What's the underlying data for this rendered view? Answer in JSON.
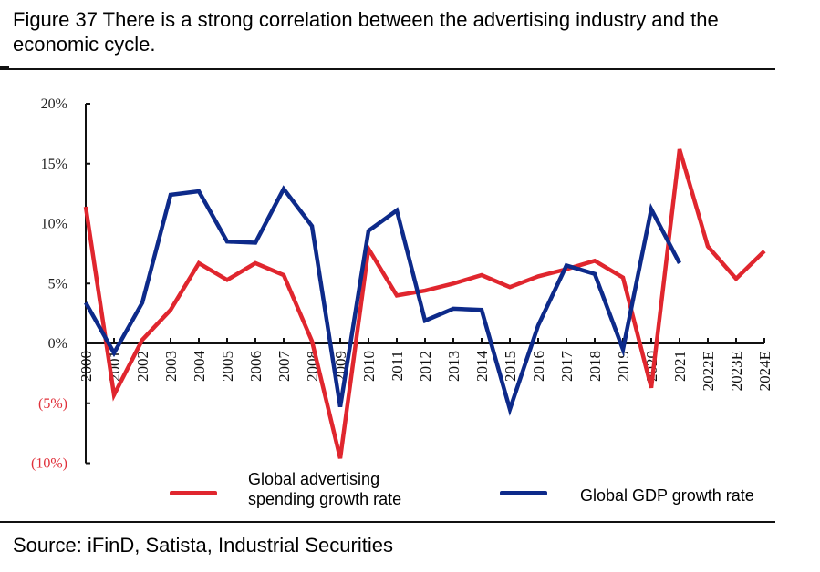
{
  "figure": {
    "title": "Figure 37 There is a strong correlation between the advertising industry and the economic cycle.",
    "source": "Source: iFinD, Satista, Industrial Securities"
  },
  "chart_data": {
    "type": "line",
    "title": "Figure 37 There is a strong correlation between the advertising industry and the economic cycle.",
    "xlabel": "",
    "ylabel": "",
    "categories": [
      "2000",
      "2001",
      "2002",
      "2003",
      "2004",
      "2005",
      "2006",
      "2007",
      "2008",
      "2009",
      "2010",
      "2011",
      "2012",
      "2013",
      "2014",
      "2015",
      "2016",
      "2017",
      "2018",
      "2019",
      "2020",
      "2021",
      "2022E",
      "2023E",
      "2024E"
    ],
    "ylim": [
      -10,
      20
    ],
    "yticks": [
      20,
      15,
      10,
      5,
      0,
      -5,
      -10
    ],
    "ytick_labels": [
      "20%",
      "15%",
      "10%",
      "5%",
      "0%",
      "(5%)",
      "(10%)"
    ],
    "negative_tick_color": "#e0303a",
    "positive_tick_color": "#222222",
    "grid": false,
    "legend_position": "bottom",
    "series": [
      {
        "name": "Global advertising spending growth rate",
        "color": "#e0262e",
        "values": [
          11.4,
          -4.3,
          0.3,
          2.8,
          6.7,
          5.3,
          6.7,
          5.7,
          0.2,
          -9.6,
          7.9,
          4.0,
          4.4,
          5.0,
          5.7,
          4.7,
          5.6,
          6.2,
          6.9,
          5.5,
          -3.7,
          16.2,
          8.1,
          5.4,
          7.7
        ]
      },
      {
        "name": "Global GDP growth rate",
        "color": "#0d2a8a",
        "values": [
          3.4,
          -0.8,
          3.4,
          12.4,
          12.7,
          8.5,
          8.4,
          12.9,
          9.8,
          -5.3,
          9.4,
          11.1,
          1.9,
          2.9,
          2.8,
          -5.5,
          1.5,
          6.5,
          5.8,
          -0.5,
          11.2,
          6.7,
          null,
          null,
          null
        ]
      }
    ]
  },
  "legend": {
    "items": [
      {
        "label_line1": "Global advertising",
        "label_line2": "spending growth rate",
        "color": "#e0262e"
      },
      {
        "label_line1": "Global GDP growth rate",
        "label_line2": "",
        "color": "#0d2a8a"
      }
    ]
  }
}
